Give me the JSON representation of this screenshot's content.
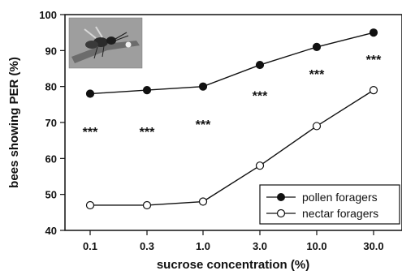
{
  "chart_data": {
    "type": "line",
    "title": "",
    "xlabel": "sucrose concentration (%)",
    "ylabel": "bees showing PER (%)",
    "categories": [
      "0.1",
      "0.3",
      "1.0",
      "3.0",
      "10.0",
      "30.0"
    ],
    "ylim": [
      40,
      100
    ],
    "yticks": [
      40,
      50,
      60,
      70,
      80,
      90,
      100
    ],
    "grid": false,
    "legend_position": "bottom-right",
    "series": [
      {
        "name": "pollen foragers",
        "marker": "filled-circle",
        "values": [
          78,
          79,
          80,
          86,
          91,
          95
        ]
      },
      {
        "name": "nectar foragers",
        "marker": "open-circle",
        "values": [
          47,
          47,
          48,
          58,
          69,
          79
        ]
      }
    ],
    "annotations": [
      {
        "category": "0.1",
        "y": 68,
        "text": "***"
      },
      {
        "category": "0.3",
        "y": 68,
        "text": "***"
      },
      {
        "category": "1.0",
        "y": 70,
        "text": "***"
      },
      {
        "category": "3.0",
        "y": 78,
        "text": "***"
      },
      {
        "category": "10.0",
        "y": 84,
        "text": "***"
      },
      {
        "category": "30.0",
        "y": 88,
        "text": "***"
      }
    ]
  },
  "inset": {
    "icon": "honeybee-photo-icon",
    "description_colors": {
      "background": "#9a9a9a",
      "bee": "#2a2a2a"
    }
  }
}
